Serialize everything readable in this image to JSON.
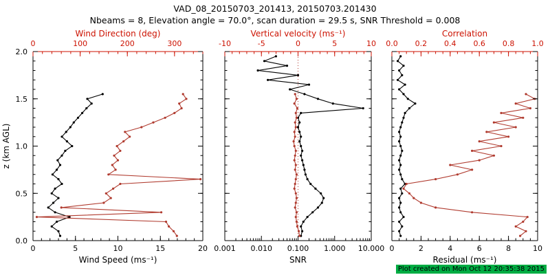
{
  "header": {
    "title": "VAD_08_20150703_201413, 20150703.201430",
    "subtitle": "Nbeams = 8, Elevation angle = 70.0°, scan duration = 29.5 s, SNR Threshold = 0.008"
  },
  "footer": {
    "created": "Plot created on Mon Oct 12 20:35:38 2015",
    "highlight_color": "#00ad43"
  },
  "colors": {
    "black": "#000000",
    "red": "#b03a2e",
    "axis_red": "#cc1100"
  },
  "chart_data": [
    {
      "type": "line",
      "name": "wind-panel",
      "ylabel": "z (km AGL)",
      "ylim": [
        0,
        2
      ],
      "yticks": [
        0,
        0.5,
        1,
        1.5,
        2
      ],
      "ytick_labels": [
        "0.0",
        "0.5",
        "1.0",
        "1.5",
        "2.0"
      ],
      "show_ytick_labels": true,
      "bottom_axis": {
        "label": "Wind Speed (ms⁻¹)",
        "lim": [
          0,
          20
        ],
        "ticks": [
          0,
          5,
          10,
          15,
          20
        ],
        "tick_labels": [
          "0",
          "5",
          "10",
          "15",
          "20"
        ],
        "minor": 5,
        "color": "black"
      },
      "top_axis": {
        "label": "Wind Direction (deg)",
        "lim": [
          0,
          360
        ],
        "ticks": [
          0,
          100,
          200,
          300
        ],
        "tick_labels": [
          "0",
          "100",
          "200",
          "300"
        ],
        "minor": 5,
        "color": "axis_red"
      },
      "series": [
        {
          "name": "wind-speed",
          "axis": "bottom",
          "color": "black",
          "z": [
            0.05,
            0.1,
            0.15,
            0.2,
            0.25,
            0.3,
            0.35,
            0.4,
            0.45,
            0.5,
            0.55,
            0.6,
            0.65,
            0.7,
            0.75,
            0.8,
            0.85,
            0.9,
            0.95,
            1.0,
            1.05,
            1.1,
            1.15,
            1.2,
            1.25,
            1.3,
            1.35,
            1.4,
            1.45,
            1.5,
            1.55
          ],
          "v": [
            3.2,
            3.0,
            2.2,
            2.8,
            4.3,
            2.6,
            1.8,
            2.4,
            3.0,
            2.2,
            2.6,
            3.4,
            3.0,
            2.3,
            2.8,
            3.2,
            2.9,
            3.4,
            3.8,
            4.6,
            4.0,
            3.4,
            3.9,
            4.4,
            4.8,
            5.3,
            5.8,
            6.3,
            6.9,
            6.4,
            8.2
          ]
        },
        {
          "name": "wind-direction",
          "axis": "top",
          "color": "red",
          "z": [
            0.05,
            0.1,
            0.15,
            0.2,
            0.25,
            0.3,
            0.35,
            0.4,
            0.45,
            0.5,
            0.55,
            0.6,
            0.65,
            0.7,
            0.75,
            0.8,
            0.85,
            0.9,
            0.95,
            1.0,
            1.05,
            1.1,
            1.15,
            1.2,
            1.25,
            1.3,
            1.35,
            1.4,
            1.45,
            1.5,
            1.55
          ],
          "v": [
            305,
            298,
            288,
            282,
            8,
            272,
            60,
            150,
            165,
            155,
            170,
            185,
            355,
            160,
            175,
            168,
            180,
            172,
            185,
            178,
            192,
            205,
            195,
            230,
            255,
            280,
            300,
            315,
            310,
            325,
            318
          ]
        }
      ]
    },
    {
      "type": "line",
      "name": "snr-panel",
      "ylabel": "",
      "ylim": [
        0,
        2
      ],
      "yticks": [
        0,
        0.5,
        1,
        1.5,
        2
      ],
      "ytick_labels": [
        "0.0",
        "0.5",
        "1.0",
        "1.5",
        "2.0"
      ],
      "show_ytick_labels": false,
      "bottom_axis": {
        "label": "SNR",
        "lim": [
          0.001,
          10
        ],
        "scale": "log",
        "ticks": [
          0.001,
          0.01,
          0.1,
          1,
          10
        ],
        "tick_labels": [
          "0.001",
          "0.010",
          "0.100",
          "1.000",
          "10.000"
        ],
        "color": "black"
      },
      "top_axis": {
        "label": "Vertical velocity (ms⁻¹)",
        "lim": [
          -10,
          10
        ],
        "ticks": [
          -10,
          -5,
          0,
          5,
          10
        ],
        "tick_labels": [
          "-10",
          "-5",
          "0",
          "5",
          "10"
        ],
        "minor": 5,
        "color": "axis_red"
      },
      "refline": {
        "axis": "top",
        "value": 0,
        "color": "red",
        "style": "dotted"
      },
      "series": [
        {
          "name": "snr",
          "axis": "bottom",
          "color": "black",
          "z": [
            0.05,
            0.1,
            0.15,
            0.2,
            0.25,
            0.3,
            0.35,
            0.4,
            0.45,
            0.5,
            0.55,
            0.6,
            0.65,
            0.7,
            0.75,
            0.8,
            0.85,
            0.9,
            0.95,
            1.0,
            1.05,
            1.1,
            1.15,
            1.2,
            1.25,
            1.3,
            1.35,
            1.4,
            1.45,
            1.5,
            1.55,
            1.6,
            1.65,
            1.7,
            1.75,
            1.8,
            1.85,
            1.9,
            1.95
          ],
          "v": [
            0.12,
            0.13,
            0.12,
            0.14,
            0.18,
            0.25,
            0.35,
            0.45,
            0.5,
            0.42,
            0.3,
            0.22,
            0.18,
            0.16,
            0.15,
            0.14,
            0.13,
            0.12,
            0.13,
            0.12,
            0.11,
            0.12,
            0.11,
            0.1,
            0.11,
            0.1,
            0.12,
            6.0,
            0.9,
            0.35,
            0.15,
            0.06,
            0.2,
            0.015,
            0.1,
            0.008,
            0.05,
            0.012,
            0.025
          ]
        },
        {
          "name": "vertical-velocity",
          "axis": "top",
          "color": "red",
          "z": [
            0.05,
            0.1,
            0.15,
            0.2,
            0.25,
            0.3,
            0.35,
            0.4,
            0.45,
            0.5,
            0.55,
            0.6,
            0.65,
            0.7,
            0.75,
            0.8,
            0.85,
            0.9,
            0.95,
            1.0,
            1.05,
            1.1,
            1.15,
            1.2,
            1.25,
            1.3,
            1.35,
            1.4,
            1.45,
            1.5,
            1.55
          ],
          "v": [
            0.2,
            0.1,
            -0.1,
            -0.2,
            -0.3,
            -0.2,
            -0.4,
            -0.3,
            -0.2,
            -0.3,
            -0.5,
            -0.4,
            -0.3,
            -0.2,
            -0.4,
            -0.3,
            -0.5,
            -0.4,
            -0.3,
            -0.5,
            -0.6,
            -0.4,
            -0.5,
            -0.3,
            -0.4,
            -0.2,
            -0.3,
            -0.1,
            -0.5,
            -0.2,
            -0.4
          ]
        }
      ]
    },
    {
      "type": "line",
      "name": "residual-panel",
      "ylabel": "",
      "ylim": [
        0,
        2
      ],
      "yticks": [
        0,
        0.5,
        1,
        1.5,
        2
      ],
      "ytick_labels": [
        "0.0",
        "0.5",
        "1.0",
        "1.5",
        "2.0"
      ],
      "show_ytick_labels": false,
      "bottom_axis": {
        "label": "Residual (ms⁻¹)",
        "lim": [
          0,
          10
        ],
        "ticks": [
          0,
          2,
          4,
          6,
          8,
          10
        ],
        "tick_labels": [
          "0",
          "2",
          "4",
          "6",
          "8",
          "10"
        ],
        "minor": 4,
        "color": "black"
      },
      "top_axis": {
        "label": "Correlation",
        "lim": [
          0,
          1
        ],
        "ticks": [
          0,
          0.2,
          0.4,
          0.6,
          0.8,
          1
        ],
        "tick_labels": [
          "0.0",
          "0.2",
          "0.4",
          "0.6",
          "0.8",
          "1.0"
        ],
        "minor": 4,
        "color": "axis_red"
      },
      "series": [
        {
          "name": "residual",
          "axis": "bottom",
          "color": "black",
          "z": [
            0.05,
            0.1,
            0.15,
            0.2,
            0.25,
            0.3,
            0.35,
            0.4,
            0.45,
            0.5,
            0.55,
            0.6,
            0.65,
            0.7,
            0.75,
            0.8,
            0.85,
            0.9,
            0.95,
            1.0,
            1.05,
            1.1,
            1.15,
            1.2,
            1.25,
            1.3,
            1.35,
            1.4,
            1.45,
            1.5,
            1.55,
            1.6,
            1.65,
            1.7,
            1.75,
            1.8,
            1.85,
            1.9,
            1.95
          ],
          "v": [
            0.6,
            0.5,
            0.7,
            0.5,
            0.8,
            0.6,
            0.5,
            0.6,
            0.5,
            0.7,
            0.6,
            0.9,
            0.7,
            0.6,
            0.5,
            0.6,
            0.5,
            0.6,
            0.7,
            0.6,
            0.5,
            0.6,
            0.5,
            0.6,
            0.7,
            0.8,
            0.9,
            1.2,
            1.6,
            1.1,
            0.8,
            0.5,
            0.9,
            0.4,
            0.7,
            0.5,
            0.8,
            0.4,
            0.6
          ]
        },
        {
          "name": "correlation",
          "axis": "top",
          "color": "red",
          "z": [
            0.05,
            0.1,
            0.15,
            0.2,
            0.25,
            0.3,
            0.35,
            0.4,
            0.45,
            0.5,
            0.55,
            0.6,
            0.65,
            0.7,
            0.75,
            0.8,
            0.85,
            0.9,
            0.95,
            1.0,
            1.05,
            1.1,
            1.15,
            1.2,
            1.25,
            1.3,
            1.35,
            1.4,
            1.45,
            1.5,
            1.55
          ],
          "v": [
            0.88,
            0.92,
            0.85,
            0.9,
            0.93,
            0.55,
            0.3,
            0.2,
            0.15,
            0.12,
            0.08,
            0.1,
            0.3,
            0.45,
            0.55,
            0.4,
            0.6,
            0.7,
            0.55,
            0.75,
            0.6,
            0.8,
            0.65,
            0.85,
            0.7,
            0.9,
            0.75,
            0.95,
            0.85,
            0.98,
            0.92
          ]
        }
      ]
    }
  ]
}
